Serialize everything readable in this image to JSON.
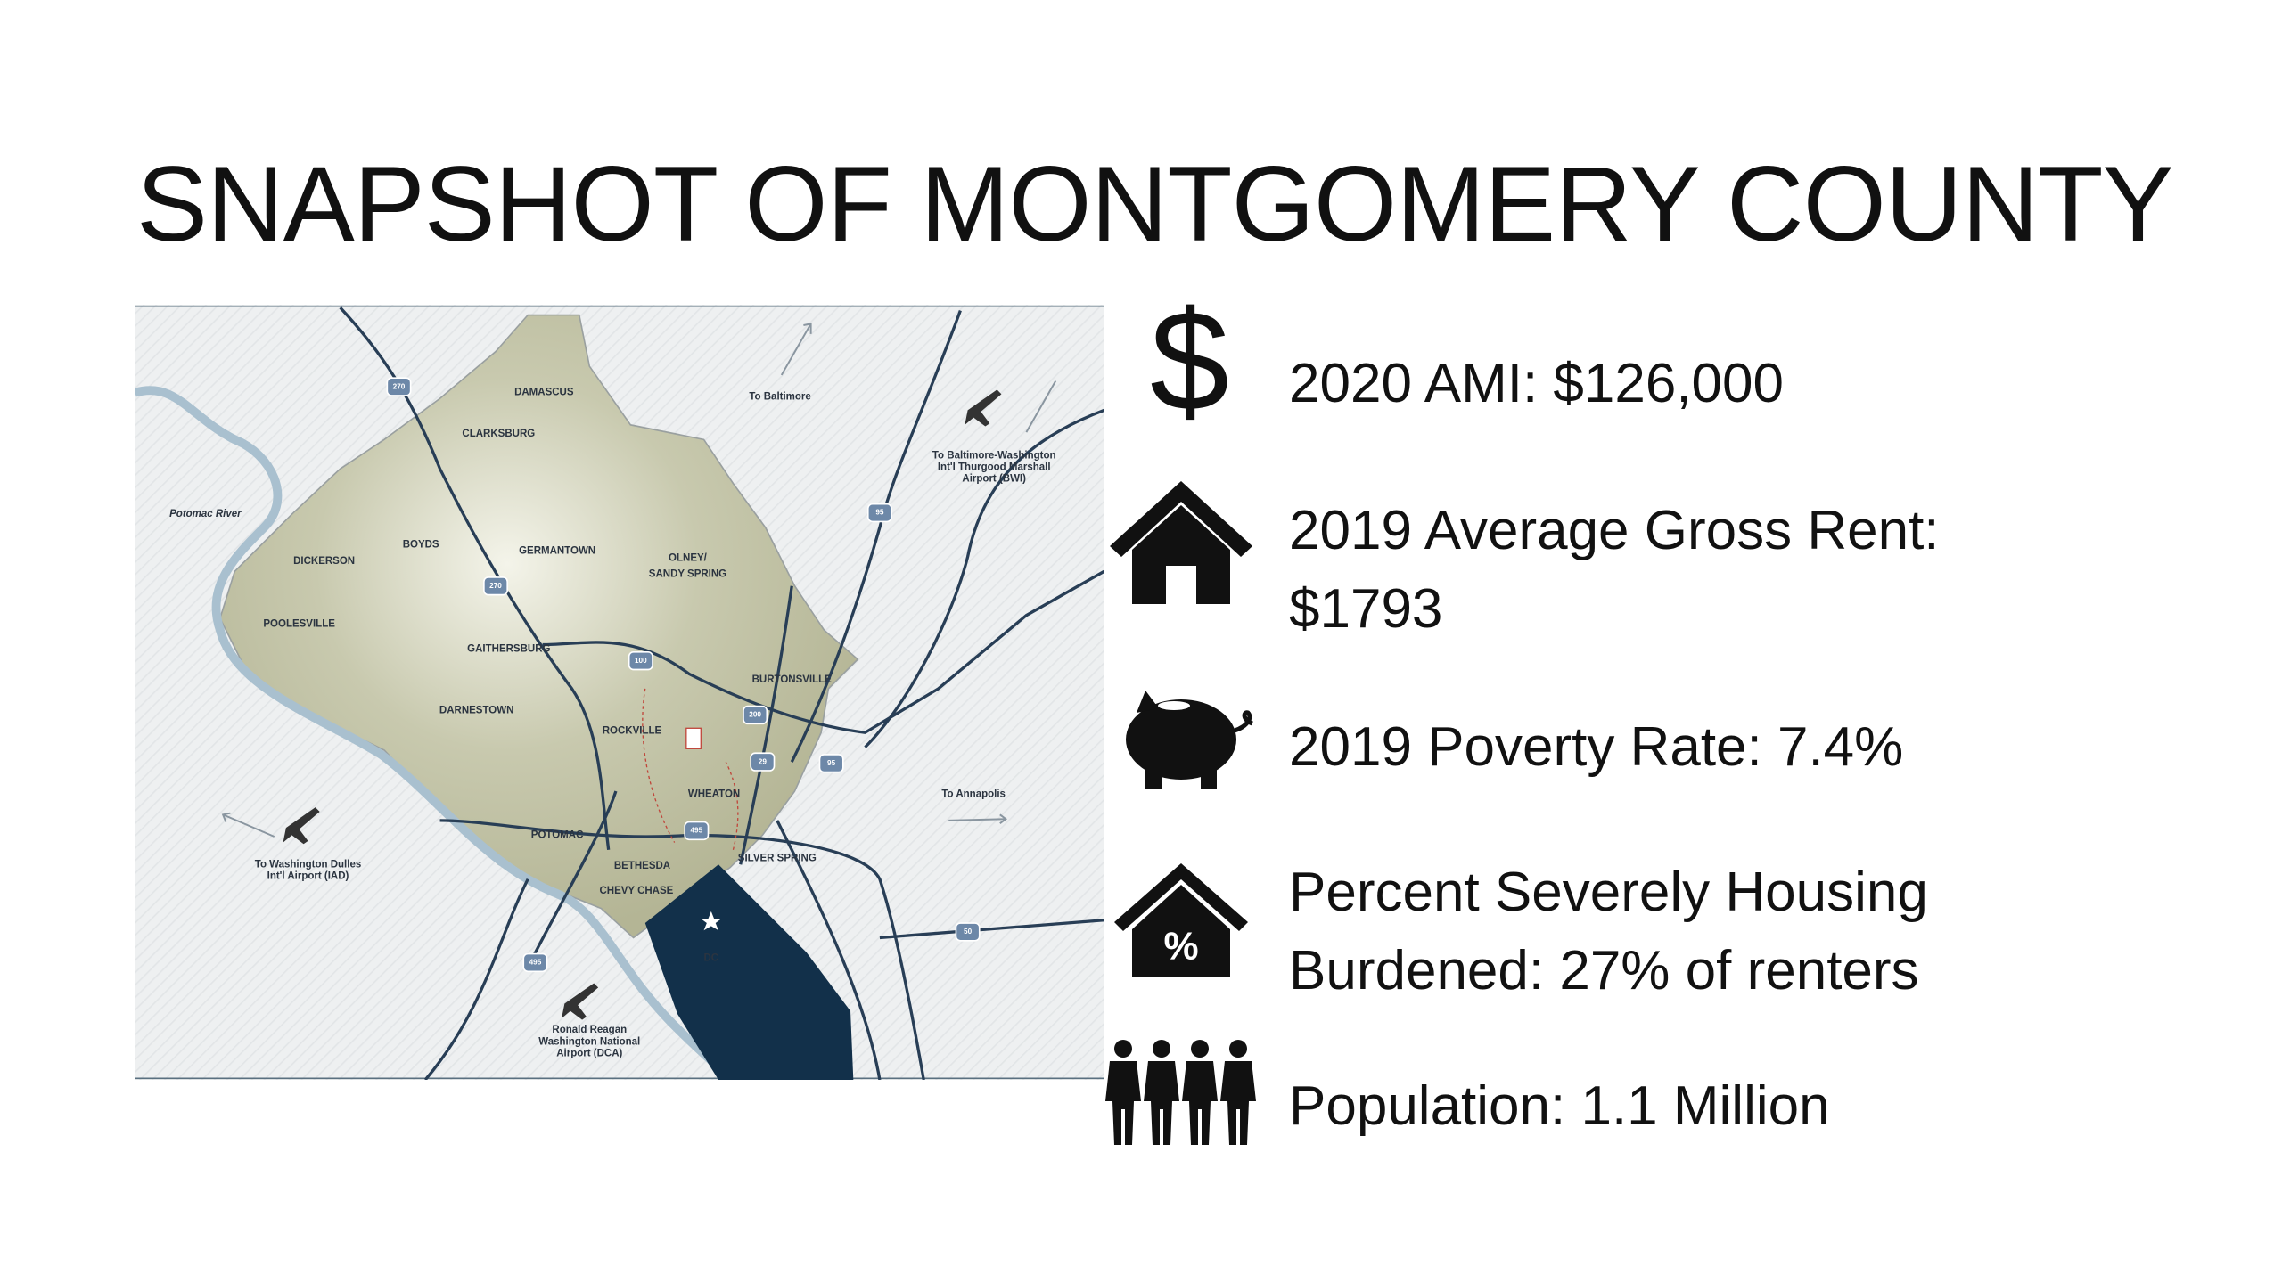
{
  "title": "SNAPSHOT OF MONTGOMERY COUNTY",
  "map": {
    "labels": [
      "DAMASCUS",
      "CLARKSBURG",
      "To Baltimore",
      "To Baltimore-Washington",
      "Int'l Thurgood Marshall",
      "Airport (BWI)",
      "Potomac River",
      "BOYDS",
      "GERMANTOWN",
      "DICKERSON",
      "OLNEY/",
      "SANDY SPRING",
      "POOLESVILLE",
      "GAITHERSBURG",
      "BURTONSVILLE",
      "DARNESTOWN",
      "ROCKVILLE",
      "WHEATON",
      "To Annapolis",
      "POTOMAC",
      "BETHESDA",
      "SILVER SPRING",
      "CHEVY CHASE",
      "DC",
      "To Washington Dulles",
      "Int'l Airport (IAD)",
      "Ronald Reagan",
      "Washington National",
      "Airport (DCA)"
    ],
    "shields": [
      "270",
      "95",
      "270",
      "100",
      "200",
      "29",
      "95",
      "495",
      "50",
      "495"
    ]
  },
  "dollar_icon": "$",
  "stats": [
    "2020 AMI: $126,000",
    "2019 Average Gross Rent: $1793",
    "2019 Poverty Rate: 7.4%",
    "Percent Severely Housing Burdened: 27% of renters",
    "Population: 1.1 Million"
  ]
}
